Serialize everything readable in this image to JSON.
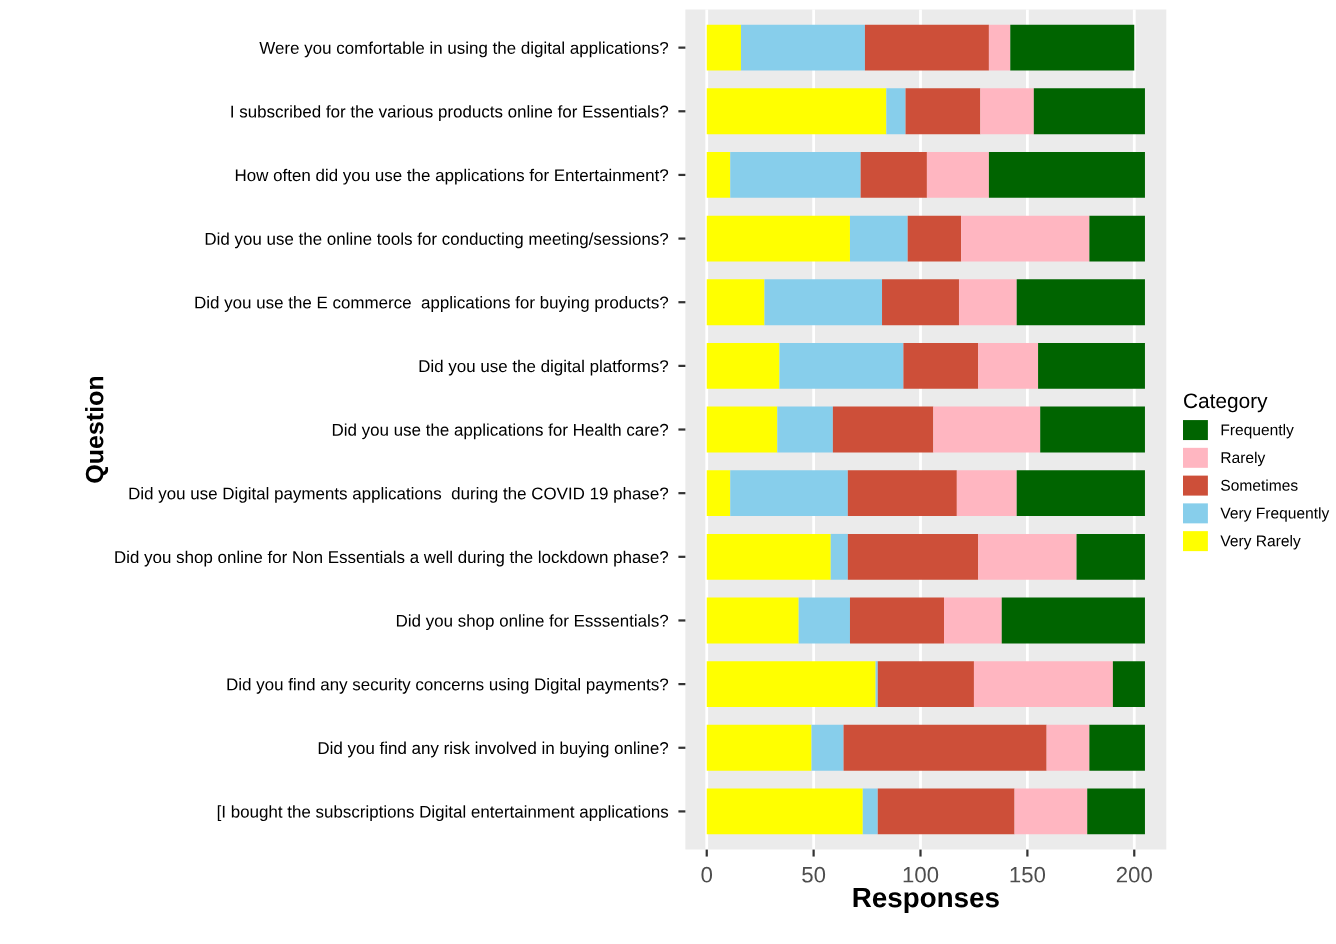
{
  "chart_data": {
    "type": "bar",
    "orientation": "horizontal",
    "stacked": true,
    "xlabel": "Responses",
    "ylabel": "Question",
    "legend_title": "Category",
    "legend": "right",
    "grid": "x",
    "categories": [
      "Were you comfortable in using the digital applications?",
      "I subscribed for the various products online for Essentials?",
      "How often did you use the applications for Entertainment?",
      "Did you use the online tools for conducting meeting/sessions?",
      "Did you use the E commerce  applications for buying products?",
      "Did you use the digital platforms?",
      "Did you use the applications for Health care?",
      "Did you use Digital payments applications  during the COVID 19 phase?",
      "Did you shop online for Non Essentials a well during the lockdown phase?",
      "Did you shop online for Esssentials?",
      "Did you find any security concerns using Digital payments?",
      "Did you find any risk involved in buying online?",
      "[I bought the subscriptions Digital entertainment applications"
    ],
    "series": [
      {
        "name": "Very Rarely",
        "color": "#ffff00",
        "values": [
          16,
          84,
          11,
          67,
          27,
          34,
          33,
          11,
          58,
          43,
          79,
          49,
          73
        ]
      },
      {
        "name": "Very Frequently",
        "color": "#87ceeb",
        "values": [
          58,
          9,
          61,
          27,
          55,
          58,
          26,
          55,
          8,
          24,
          1,
          15,
          7
        ]
      },
      {
        "name": "Sometimes",
        "color": "#cd4f39",
        "values": [
          58,
          35,
          31,
          25,
          36,
          35,
          47,
          51,
          61,
          44,
          45,
          95,
          64
        ]
      },
      {
        "name": "Rarely",
        "color": "#ffb6c1",
        "values": [
          10,
          25,
          29,
          60,
          27,
          28,
          50,
          28,
          46,
          27,
          65,
          20,
          34
        ]
      },
      {
        "name": "Frequently",
        "color": "#006400",
        "values": [
          58,
          52,
          73,
          26,
          60,
          50,
          49,
          60,
          32,
          67,
          15,
          26,
          27
        ]
      }
    ],
    "xlim": [
      -10,
      215
    ],
    "xticks": [
      0,
      50,
      100,
      150,
      200
    ]
  }
}
